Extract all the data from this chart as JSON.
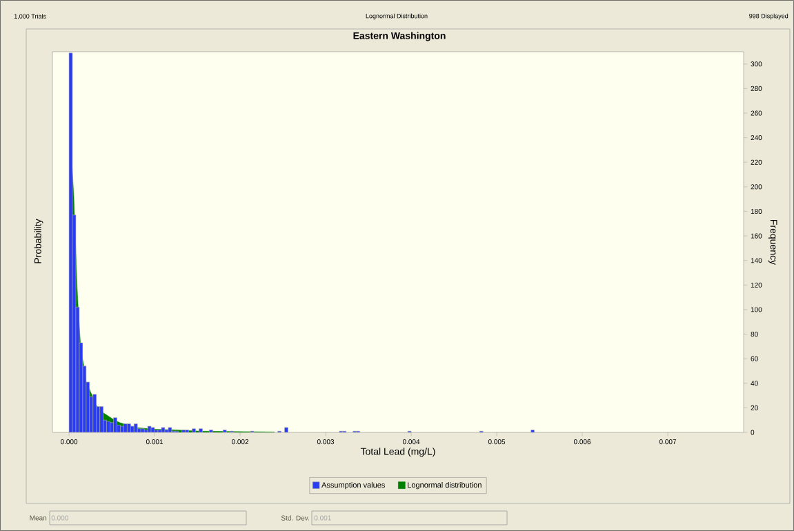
{
  "chart_data": {
    "type": "histogram",
    "title": "Eastern Washington",
    "xlabel": "Total Lead (mg/L)",
    "ylabel": "Frequency",
    "y2label": "Probability",
    "annotations": [
      "1,000 Trials",
      "Lognormal Distribution",
      "998 Displayed",
      "Mean",
      "0.000",
      "Std. Dev.",
      "0.001"
    ],
    "bins": [
      0,
      4e-05,
      8e-05,
      0.00012,
      0.00016,
      0.0002,
      0.00024,
      0.00028,
      0.00032,
      0.00036,
      0.0004,
      0.00044,
      0.00048,
      0.00052,
      0.00056,
      0.0006,
      0.00064,
      0.00068,
      0.00072,
      0.00076,
      0.0008,
      0.00084,
      0.00088,
      0.00092,
      0.00096,
      0.001,
      0.00104,
      0.00108,
      0.00112,
      0.00116,
      0.0012,
      0.00124,
      0.00128,
      0.00132,
      0.00136,
      0.0014,
      0.00144,
      0.00148,
      0.00152,
      0.00156,
      0.00164,
      0.00168,
      0.0018,
      0.00184,
      0.00188,
      0.00192,
      0.00212,
      0.00216,
      0.00244,
      0.00248,
      0.00252,
      0.00256,
      0.00316,
      0.0032,
      0.00324,
      0.00332,
      0.00336,
      0.0034,
      0.00396,
      0.004,
      0.0048,
      0.00484,
      0.0054,
      0.00544
    ],
    "series": [
      {
        "name": "Assumption values",
        "type": "histogram",
        "color": "#2a3cf2",
        "values": [
          309,
          177,
          102,
          73,
          54,
          41,
          29,
          31,
          21,
          21,
          10,
          9,
          8,
          12,
          6,
          5,
          7,
          7,
          5,
          7,
          3,
          3,
          2,
          5,
          4,
          2,
          2,
          4,
          2,
          4,
          1,
          1,
          null,
          2,
          2,
          null,
          3,
          null,
          3,
          null,
          2,
          null,
          2,
          null,
          1,
          null,
          1,
          null,
          1,
          null,
          4,
          null,
          1,
          1,
          null,
          1,
          1,
          null,
          1,
          null,
          1,
          null,
          2
        ]
      },
      {
        "name": "Lognormal distribution",
        "type": "area",
        "color": "#008000",
        "x": [
          3.2e-05,
          5.6e-05,
          8.6e-05,
          9.5e-05,
          0.000105,
          0.00012,
          0.000133,
          0.000145,
          0.000169,
          0.0002,
          0.00024,
          0.00032,
          0.0004,
          0.00051,
          0.00059,
          0.00078,
          0.00099,
          0.00126,
          0.00153,
          0.0024
        ],
        "values": [
          221,
          192,
          135,
          118,
          104,
          87,
          73,
          64,
          56,
          41,
          35,
          22,
          16,
          11,
          8,
          4,
          2.6,
          2,
          1,
          0.3
        ]
      }
    ],
    "xlim": [
      -0.000194,
      0.007887
    ],
    "ylim": [
      0,
      310
    ],
    "xticks": [
      {
        "value": 0,
        "label": "0.000"
      },
      {
        "value": 0.001,
        "label": "0.001"
      },
      {
        "value": 0.002,
        "label": "0.002"
      },
      {
        "value": 0.003,
        "label": "0.003"
      },
      {
        "value": 0.004,
        "label": "0.004"
      },
      {
        "value": 0.005,
        "label": "0.005"
      },
      {
        "value": 0.006,
        "label": "0.006"
      },
      {
        "value": 0.007,
        "label": "0.007"
      }
    ],
    "yticks": [
      0,
      20,
      40,
      60,
      80,
      100,
      120,
      140,
      160,
      180,
      200,
      220,
      240,
      260,
      280,
      300
    ],
    "legend": "bottom"
  }
}
